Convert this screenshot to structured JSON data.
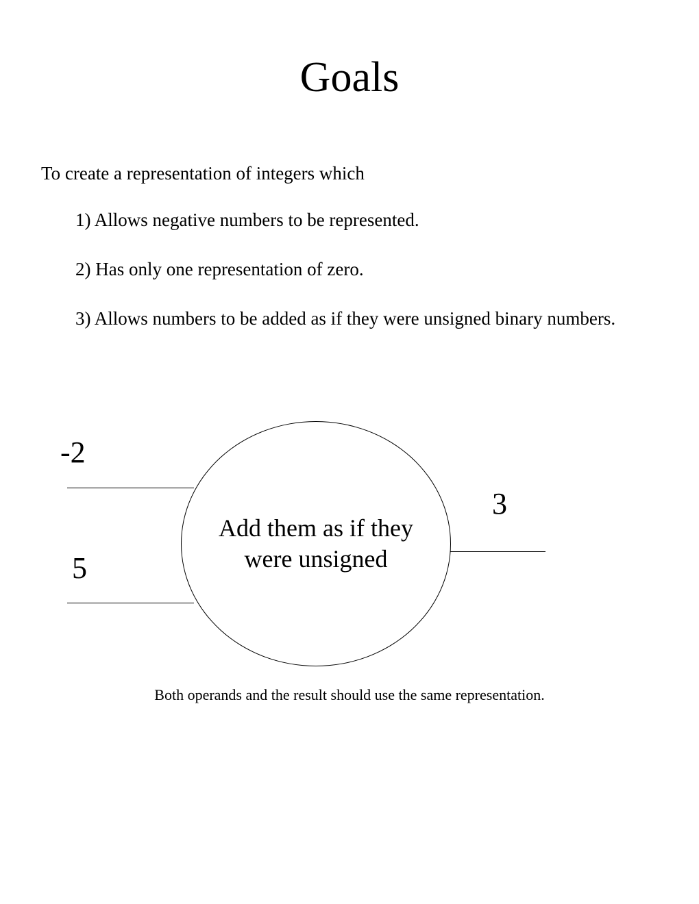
{
  "title": "Goals",
  "intro": "To create a representation of integers which",
  "goals": {
    "item1": "1) Allows negative numbers to be represented.",
    "item2": "2) Has only one representation of zero.",
    "item3": "3) Allows numbers to be added as if they were unsigned binary numbers."
  },
  "diagram": {
    "type": "flowchart",
    "circle_label": "Add them as if they were unsigned",
    "input_top": "-2",
    "input_bottom": "5",
    "output": "3",
    "circle_border_color": "#000000",
    "line_color": "#000000",
    "background_color": "#ffffff",
    "operand_font": "Times New Roman",
    "operand_fontsize": 44,
    "circle_fontsize": 36,
    "circle_width": 394,
    "circle_height": 358
  },
  "caption": "Both operands and the result should use the same representation.",
  "styles": {
    "title_fontsize": 62,
    "body_fontsize": 27,
    "caption_fontsize": 22,
    "body_font": "Comic Sans MS",
    "caption_font": "Times New Roman",
    "text_color": "#000000",
    "background_color": "#ffffff"
  }
}
